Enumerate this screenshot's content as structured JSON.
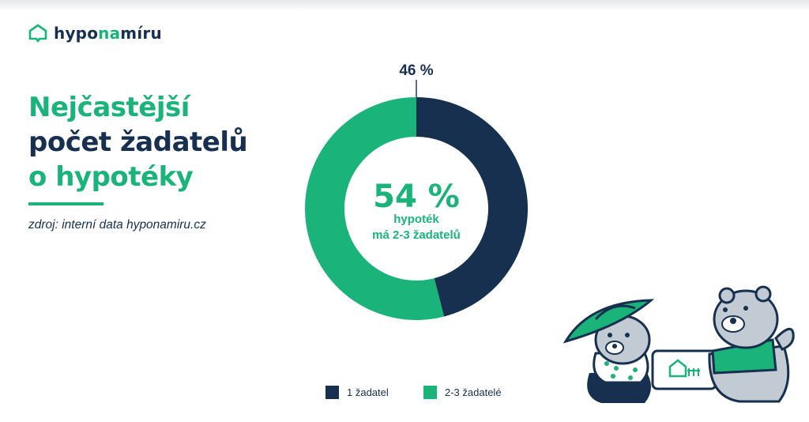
{
  "brand": {
    "name_part1": "hypo",
    "name_part2": "na",
    "name_part3": "míru"
  },
  "heading": {
    "line1": "Nejčastější",
    "line2": "počet žadatelů",
    "line3": "o hypotéky"
  },
  "source": "zdroj: interní data hyponamiru.cz",
  "colors": {
    "green": "#1ab37a",
    "navy": "#17304f"
  },
  "chart_data": {
    "type": "pie",
    "variant": "donut",
    "series": [
      {
        "name": "1 žadatel",
        "value": 46,
        "label": "46 %",
        "color": "#17304f"
      },
      {
        "name": "2-3 žadatelé",
        "value": 54,
        "label": "54 %",
        "color": "#1ab37a"
      }
    ],
    "center": {
      "value": "54 %",
      "text_line1": "hypoték",
      "text_line2": "má 2-3 žadatelů"
    },
    "legend_position": "bottom"
  },
  "icons": {
    "logo": "house-bubble-icon",
    "illustration": "cartoon-bears-with-house-tablet"
  }
}
